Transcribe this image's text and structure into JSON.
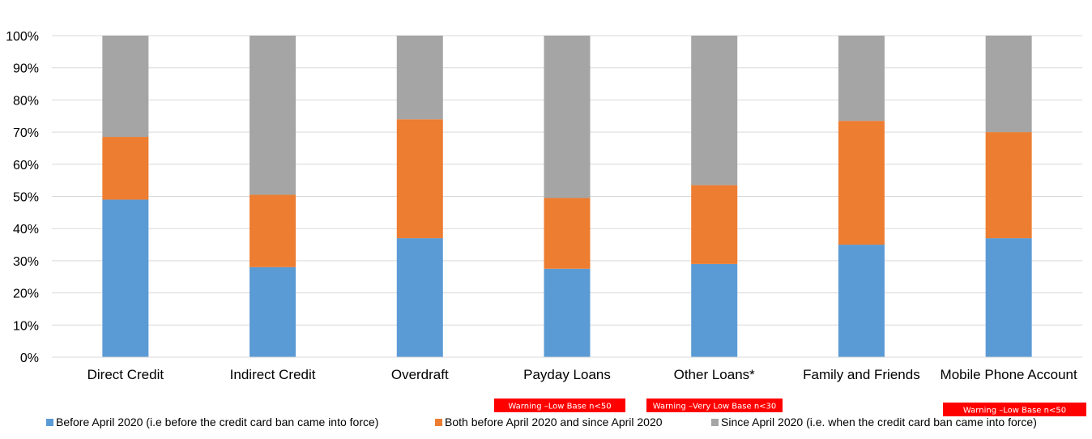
{
  "chart_data": {
    "type": "bar",
    "stacked": true,
    "title": "",
    "xlabel": "",
    "ylabel": "",
    "ylim": [
      0,
      100
    ],
    "y_ticks": [
      "0%",
      "10%",
      "20%",
      "30%",
      "40%",
      "50%",
      "60%",
      "70%",
      "80%",
      "90%",
      "100%"
    ],
    "grid": true,
    "legend_position": "bottom",
    "categories": [
      "Direct Credit",
      "Indirect Credit",
      "Overdraft",
      "Payday Loans",
      "Other Loans*",
      "Family and Friends",
      "Mobile Phone Account"
    ],
    "series": [
      {
        "name": "Before April 2020 (i.e before the credit card ban came into force)",
        "color": "#5B9BD5",
        "values": [
          49,
          28,
          37,
          27.5,
          29,
          35,
          37
        ]
      },
      {
        "name": "Both before April 2020 and since April 2020",
        "color": "#ED7D31",
        "values": [
          19.5,
          22.5,
          37,
          22,
          24.5,
          38.5,
          33
        ]
      },
      {
        "name": "Since April 2020 (i.e. when the credit card ban came into force)",
        "color": "#A5A5A5",
        "values": [
          31.5,
          49.5,
          26,
          50.5,
          46.5,
          26.5,
          30
        ]
      }
    ],
    "warnings": [
      {
        "category_index": 3,
        "text": "Warning –Low Base n<50"
      },
      {
        "category_index": 4,
        "text": "Warning –Very Low Base n<30"
      },
      {
        "category_index": 6,
        "text": "Warning –Low Base n<50"
      }
    ],
    "warning_color": "#FF0000"
  }
}
